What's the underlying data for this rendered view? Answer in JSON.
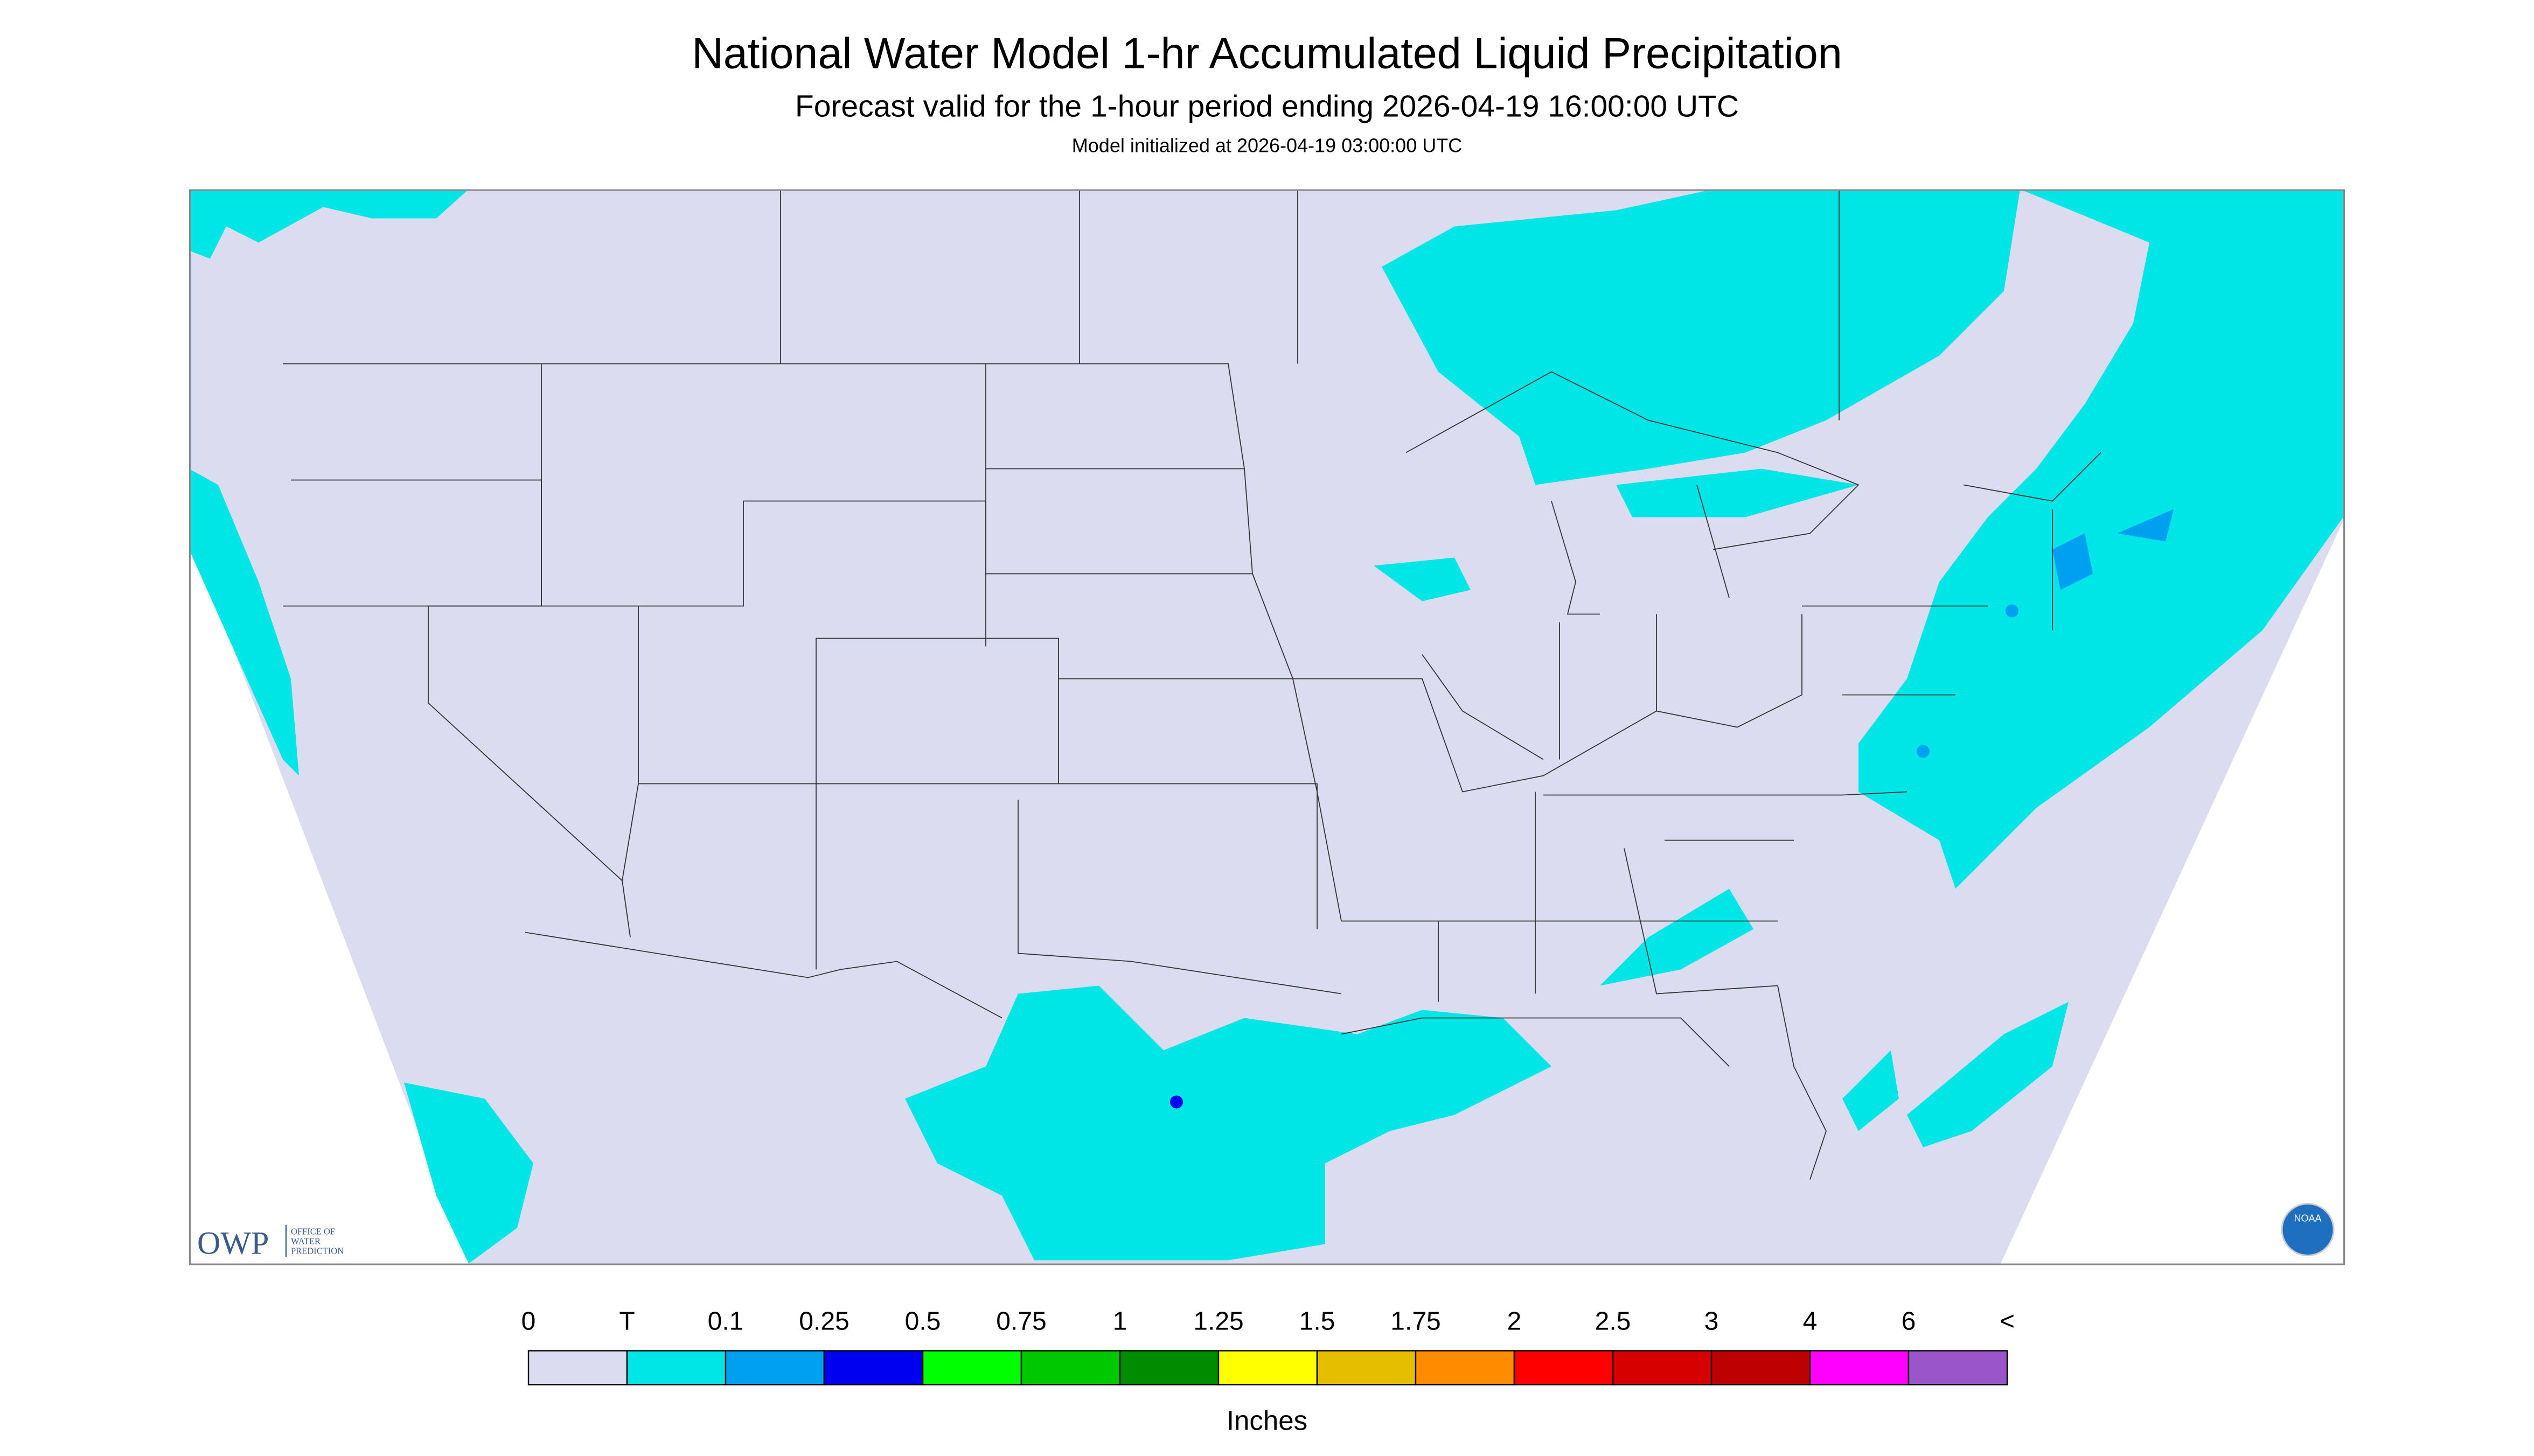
{
  "header": {
    "title": "National Water Model 1-hr Accumulated Liquid Precipitation",
    "subtitle": "Forecast valid for the 1-hour period ending 2026-04-19 16:00:00 UTC",
    "note": "Model initialized at 2026-04-19 03:00:00 UTC"
  },
  "logos": {
    "owp": "OWP",
    "owp_text": [
      "OFFICE OF",
      "WATER",
      "PREDICTION"
    ],
    "noaa": "NOAA"
  },
  "legend": {
    "labels": [
      "0",
      "T",
      "0.1",
      "0.25",
      "0.5",
      "0.75",
      "1",
      "1.25",
      "1.5",
      "1.75",
      "2",
      "2.5",
      "3",
      "4",
      "6",
      "<"
    ],
    "colors": [
      "#dcdcf0",
      "#00e6e6",
      "#00a0f0",
      "#0000f0",
      "#00ff00",
      "#00c800",
      "#008c00",
      "#ffff00",
      "#e6be00",
      "#ff8c00",
      "#ff0000",
      "#d70000",
      "#bd0000",
      "#ff00ff",
      "#9955c9"
    ],
    "units": "Inches"
  }
}
